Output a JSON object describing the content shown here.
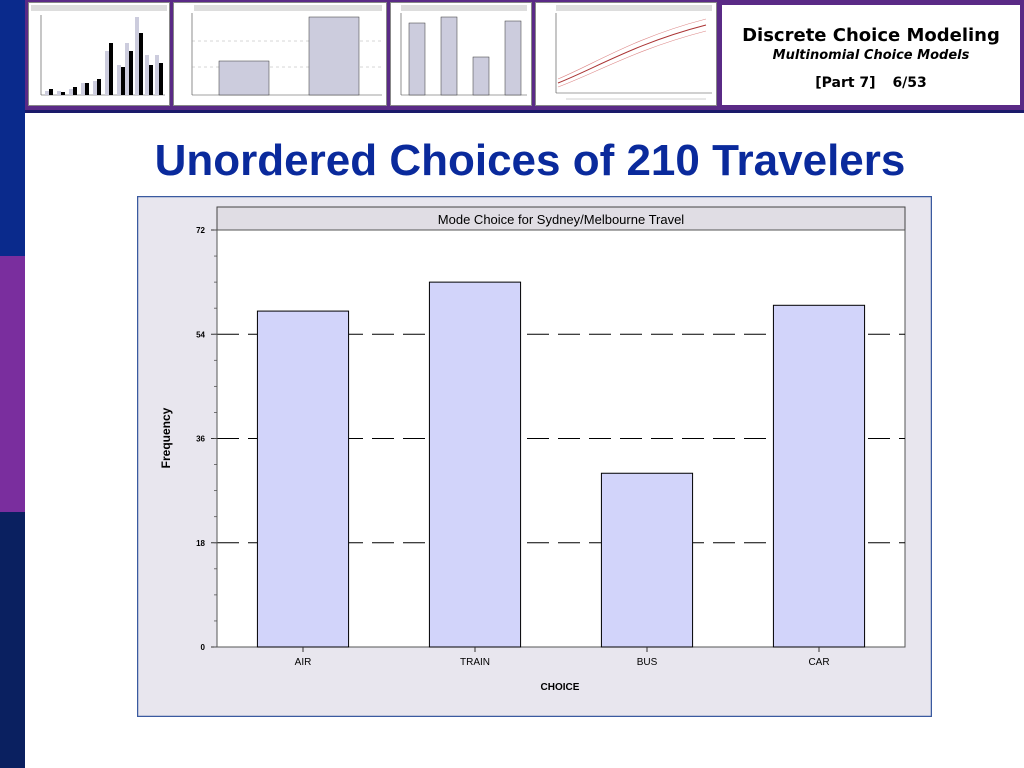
{
  "header": {
    "course_title": "Discrete Choice Modeling",
    "subtitle": "Multinomial Choice Models",
    "part_label": "[Part 7]",
    "slide_number": "6/53"
  },
  "slide": {
    "title": "Unordered Choices of 210 Travelers"
  },
  "colors": {
    "bar_fill": "#d2d4fa",
    "title_blue": "#0a2a9c",
    "chart_bg": "#e8e6ee",
    "accent_purple": "#5a2a86"
  },
  "chart_data": {
    "type": "bar",
    "title": "Mode Choice for Sydney/Melbourne Travel",
    "xlabel": "CHOICE",
    "ylabel": "Frequency",
    "categories": [
      "AIR",
      "TRAIN",
      "BUS",
      "CAR"
    ],
    "values": [
      58,
      63,
      30,
      59
    ],
    "ylim": [
      0,
      72
    ],
    "yticks": [
      0,
      18,
      36,
      54,
      72
    ],
    "grid": "dashed horizontal at 18, 36, 54"
  }
}
